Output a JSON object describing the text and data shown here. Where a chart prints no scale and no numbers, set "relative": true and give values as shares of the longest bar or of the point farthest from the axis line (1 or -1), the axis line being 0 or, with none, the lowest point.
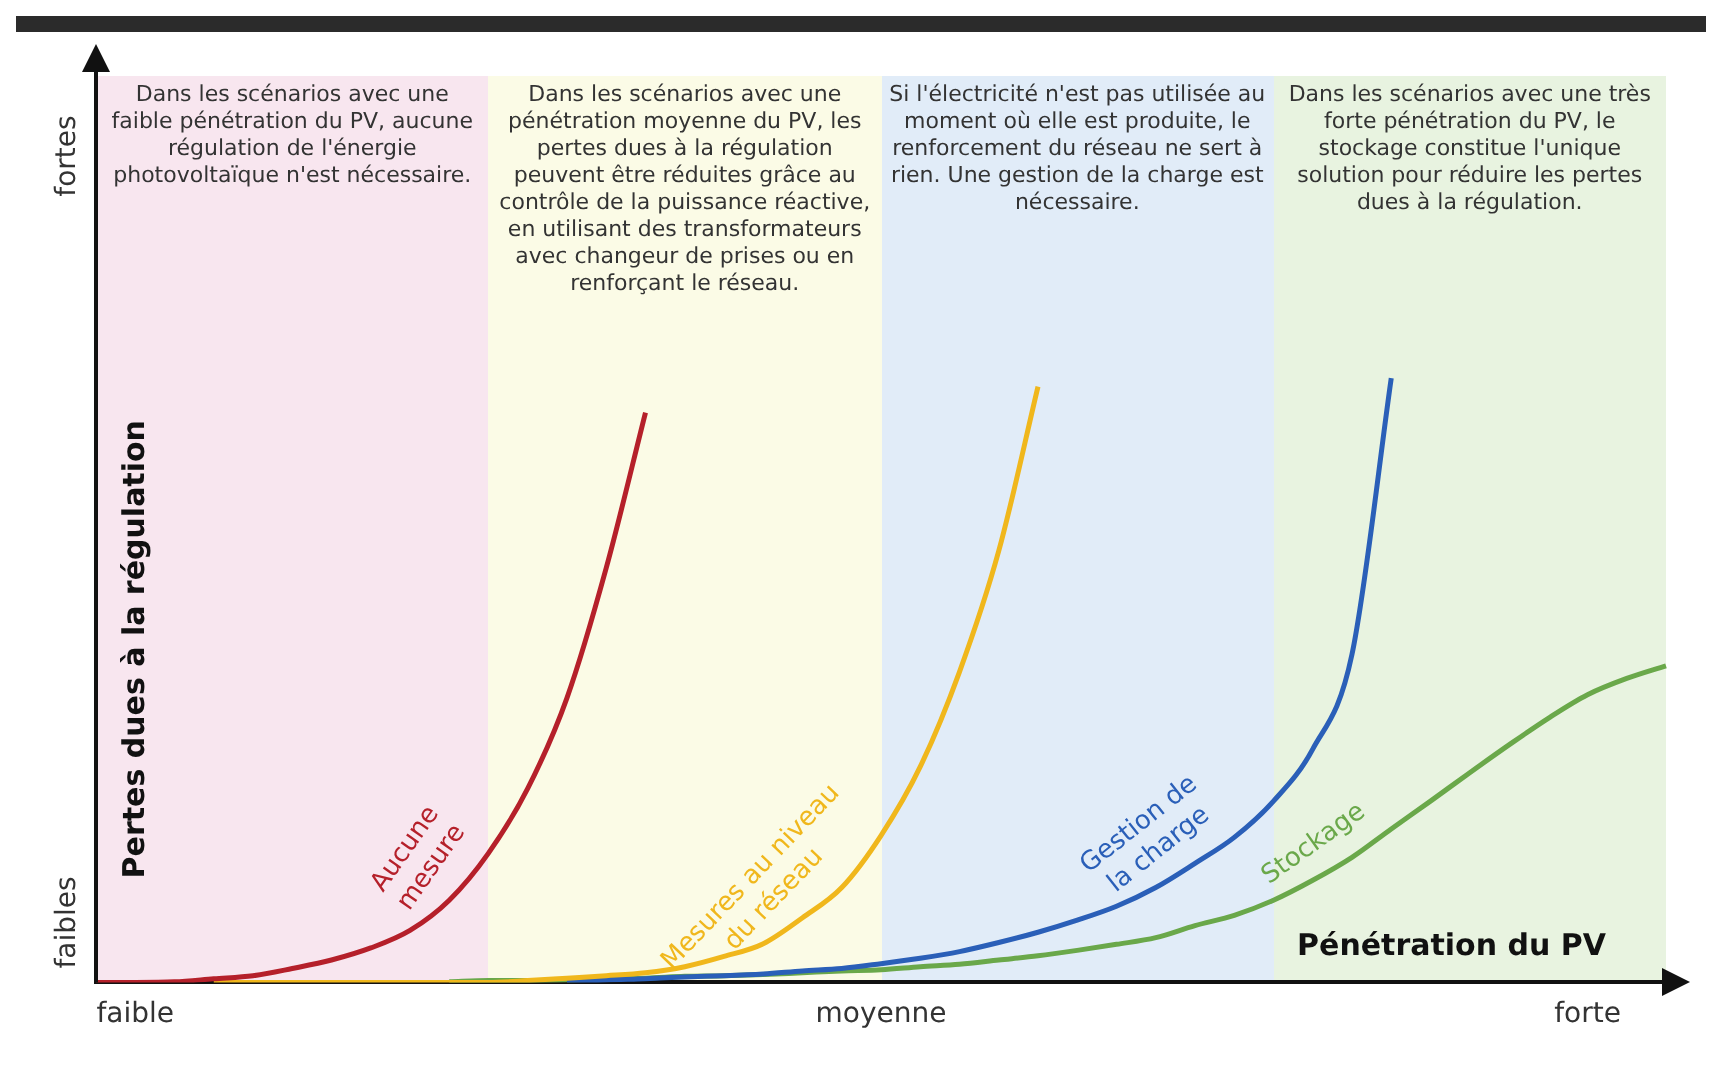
{
  "chart_data": {
    "type": "line",
    "relative": true,
    "xlabel": "Pénétration du PV",
    "ylabel": "Pertes dues à la régulation",
    "categories": [
      null,
      "faible",
      null,
      null,
      null,
      null,
      null,
      null,
      null,
      null,
      null,
      null,
      null,
      null,
      null,
      null,
      null,
      null,
      null,
      null,
      "moyenne",
      null,
      null,
      null,
      null,
      null,
      null,
      null,
      null,
      null,
      null,
      null,
      null,
      null,
      null,
      null,
      null,
      null,
      "forte",
      null,
      null
    ],
    "legend": false,
    "marker": "none",
    "line_style": "solid",
    "annotations": [
      "Dans les scénarios avec une faible pénétration du PV, aucune régulation de l'énergie photovoltaïque n'est nécessaire.",
      "Dans les scénarios avec une pénétration moyenne du PV, les pertes dues à la régulation peuvent être réduites grâce au contrôle de la puissance réactive, en utilisant des transformateurs avec changeur de prises ou en renforçant le réseau.",
      "Si l'électricité n'est pas utilisée au moment où elle est produite, le renforcement du réseau ne sert à rien. Une gestion de la charge est nécessaire.",
      "Dans les scénarios avec une très forte pénétration du PV, le stockage constitue l'unique solution pour réduire les pertes dues à la régulation.",
      "faibles",
      "fortes"
    ],
    "series": [
      {
        "name": "Aucune mesure",
        "color": "#b5202a",
        "values": [
          0,
          0,
          0.001,
          0.006,
          0.011,
          0.023,
          0.037,
          0.057,
          0.086,
          0.136,
          0.214,
          0.321,
          0.471,
          0.686,
          0.943,
          null,
          null,
          null,
          null,
          null,
          null,
          null,
          null,
          null,
          null,
          null,
          null,
          null,
          null,
          null,
          null,
          null,
          null,
          null,
          null,
          null,
          null,
          null,
          null,
          null,
          null
        ]
      },
      {
        "name": "Mesures au niveau du réseau",
        "color": "#f0b71c",
        "values": [
          null,
          null,
          null,
          0,
          0,
          0,
          0,
          0,
          0,
          0,
          0,
          0.003,
          0.007,
          0.011,
          0.016,
          0.026,
          0.043,
          0.064,
          0.107,
          0.157,
          0.243,
          0.357,
          0.514,
          0.714,
          0.986,
          null,
          null,
          null,
          null,
          null,
          null,
          null,
          null,
          null,
          null,
          null,
          null,
          null,
          null,
          null,
          null
        ]
      },
      {
        "name": "Gestion de la charge",
        "color": "#2a5fb8",
        "values": [
          null,
          null,
          null,
          null,
          null,
          null,
          null,
          null,
          null,
          null,
          null,
          null,
          0,
          0.004,
          0.006,
          0.009,
          0.011,
          0.014,
          0.019,
          0.023,
          0.031,
          0.04,
          0.051,
          0.066,
          0.083,
          0.103,
          0.126,
          0.157,
          0.197,
          0.24,
          0.3,
          0.386,
          0.543,
          1,
          null,
          null,
          null,
          null,
          null,
          null,
          null
        ]
      },
      {
        "name": "Stockage",
        "color": "#6aa84a",
        "values": [
          null,
          null,
          null,
          null,
          null,
          null,
          null,
          null,
          null,
          0.001,
          0.003,
          0.003,
          0.004,
          0.006,
          0.007,
          0.01,
          0.011,
          0.013,
          0.016,
          0.019,
          0.021,
          0.026,
          0.03,
          0.037,
          0.044,
          0.053,
          0.063,
          0.074,
          0.094,
          0.111,
          0.136,
          0.169,
          0.207,
          0.254,
          0.3,
          0.347,
          0.393,
          0.437,
          0.476,
          0.503,
          0.524
        ]
      }
    ]
  }
}
